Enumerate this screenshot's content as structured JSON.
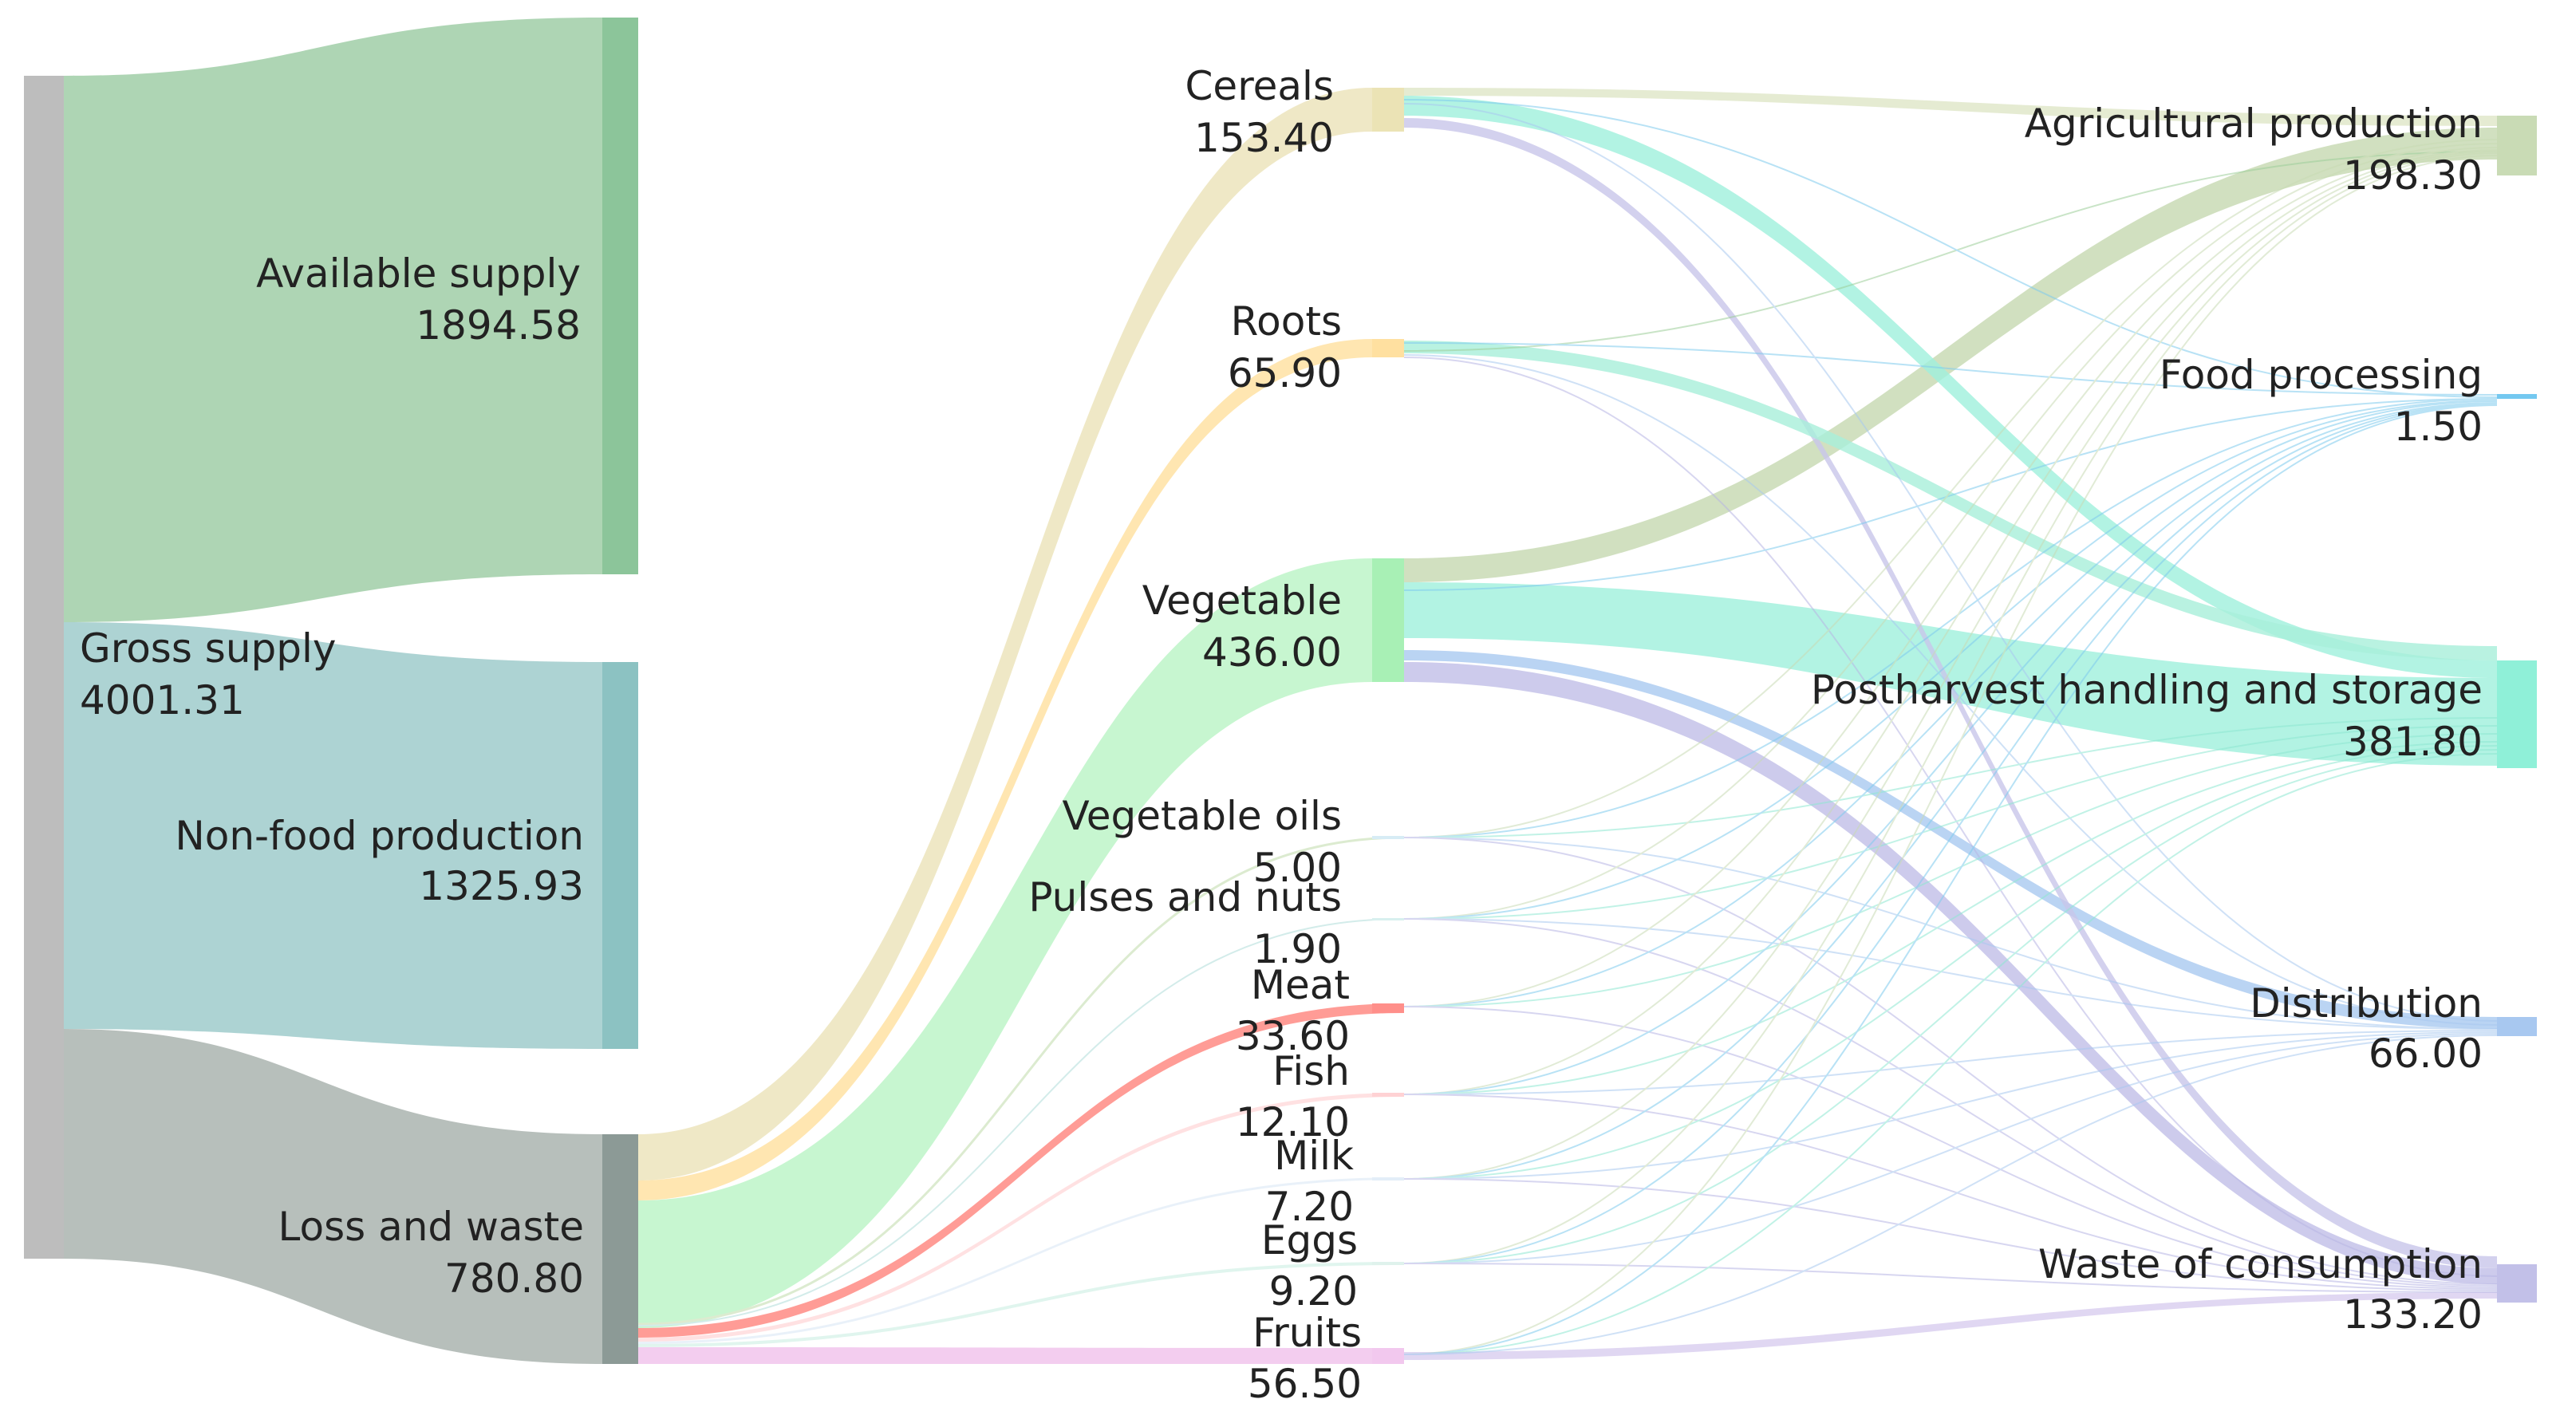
{
  "nodes": [
    {
      "id": "gross",
      "label": "Gross supply",
      "value": "4001.31",
      "color": "#bdbdbd"
    },
    {
      "id": "avail",
      "label": "Available supply",
      "value": "1894.58",
      "color": "#8cc59a"
    },
    {
      "id": "nonfood",
      "label": "Non-food production",
      "value": "1325.93",
      "color": "#8cc2c2"
    },
    {
      "id": "loss",
      "label": "Loss and waste",
      "value": "780.80",
      "color": "#8c9a96"
    },
    {
      "id": "cereals",
      "label": "Cereals",
      "value": "153.40",
      "color": "#ebe3b5"
    },
    {
      "id": "roots",
      "label": "Roots",
      "value": "65.90",
      "color": "#ffe0a0"
    },
    {
      "id": "veg",
      "label": "Vegetable",
      "value": "436.00",
      "color": "#a8f0b5"
    },
    {
      "id": "vegoils",
      "label": "Vegetable oils",
      "value": "5.00",
      "color": "#d7ecf5"
    },
    {
      "id": "pulses",
      "label": "Pulses and nuts",
      "value": "1.90",
      "color": "#d8f0ef"
    },
    {
      "id": "meat",
      "label": "Meat",
      "value": "33.60",
      "color": "#ff8f8a"
    },
    {
      "id": "fish",
      "label": "Fish",
      "value": "12.10",
      "color": "#ffd2d4"
    },
    {
      "id": "milk",
      "label": "Milk",
      "value": "7.20",
      "color": "#e3eef8"
    },
    {
      "id": "eggs",
      "label": "Eggs",
      "value": "9.20",
      "color": "#dff2ec"
    },
    {
      "id": "fruits",
      "label": "Fruits",
      "value": "56.50",
      "color": "#f2c8ee"
    },
    {
      "id": "agri",
      "label": "Agricultural production",
      "value": "198.30",
      "color": "#c9dbb5"
    },
    {
      "id": "foodproc",
      "label": "Food processing",
      "value": "1.50",
      "color": "#74c8f0"
    },
    {
      "id": "post",
      "label": "Postharvest handling and storage",
      "value": "381.80",
      "color": "#8ff0d8"
    },
    {
      "id": "dist",
      "label": "Distribution",
      "value": "66.00",
      "color": "#a8c8f0"
    },
    {
      "id": "wasteC",
      "label": "Waste of consumption",
      "value": "133.20",
      "color": "#c2c0e8"
    }
  ],
  "links": [
    {
      "source": "gross",
      "target": "avail",
      "value": 1894.58
    },
    {
      "source": "gross",
      "target": "nonfood",
      "value": 1325.93
    },
    {
      "source": "gross",
      "target": "loss",
      "value": 780.8
    },
    {
      "source": "loss",
      "target": "cereals",
      "value": 153.4
    },
    {
      "source": "loss",
      "target": "roots",
      "value": 65.9
    },
    {
      "source": "loss",
      "target": "veg",
      "value": 436.0
    },
    {
      "source": "loss",
      "target": "vegoils",
      "value": 5.0
    },
    {
      "source": "loss",
      "target": "pulses",
      "value": 1.9
    },
    {
      "source": "loss",
      "target": "meat",
      "value": 33.6
    },
    {
      "source": "loss",
      "target": "fish",
      "value": 12.1
    },
    {
      "source": "loss",
      "target": "milk",
      "value": 7.2
    },
    {
      "source": "loss",
      "target": "eggs",
      "value": 9.2
    },
    {
      "source": "loss",
      "target": "fruits",
      "value": 56.5
    },
    {
      "source": "cereals",
      "target": "agri",
      "value": 4
    },
    {
      "source": "cereals",
      "target": "post",
      "value": 25
    },
    {
      "source": "cereals",
      "target": "wasteC",
      "value": 10
    },
    {
      "source": "roots",
      "target": "post",
      "value": 6
    },
    {
      "source": "roots",
      "target": "dist",
      "value": 1
    },
    {
      "source": "veg",
      "target": "agri",
      "value": 40
    },
    {
      "source": "veg",
      "target": "post",
      "value": 110
    },
    {
      "source": "veg",
      "target": "dist",
      "value": 20
    },
    {
      "source": "veg",
      "target": "wasteC",
      "value": 25
    },
    {
      "source": "fruits",
      "target": "wasteC",
      "value": 5
    },
    {
      "source": "meat",
      "target": "dist",
      "value": 3
    }
  ]
}
